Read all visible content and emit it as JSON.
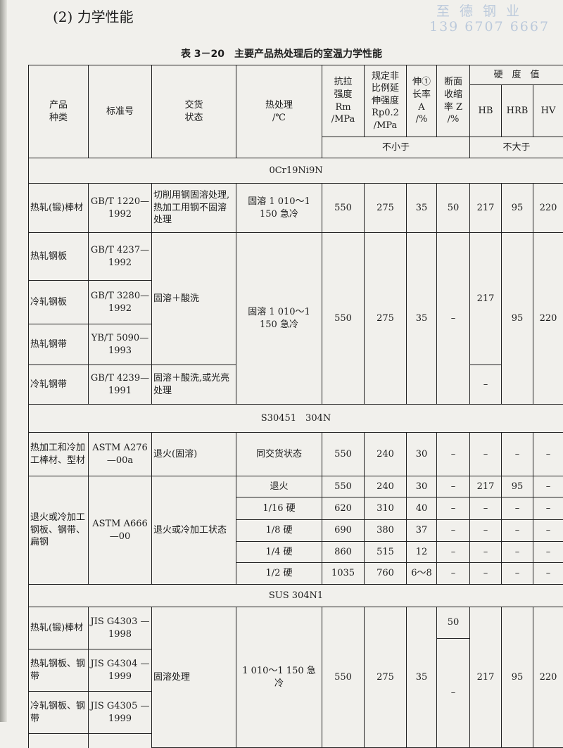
{
  "section_title": "(2) 力学性能",
  "caption": "表 3－20　主要产品热处理后的室温力学性能",
  "header": {
    "product": "产品\n种类",
    "standard": "标准号",
    "delivery": "交货\n状态",
    "heat": "热处理\n/℃",
    "rm": "抗拉\n强度\nRm\n/MPa",
    "rp": "规定非\n比例延\n伸强度\nRp0.2\n/MPa",
    "a": "伸①\n长率\nA\n/%",
    "z": "断面\n收缩\n率 Z\n/%",
    "hardness": "硬　度　值",
    "hb": "HB",
    "hrb": "HRB",
    "hv": "HV",
    "min": "不小于",
    "max": "不大于"
  },
  "groups": [
    {
      "name": "0Cr19Ni9N",
      "r1": {
        "product": "热轧(锻)棒材",
        "standard": "GB/T 1220—1992",
        "delivery": "切削用钢固溶处理,热加工用钢不固溶处理",
        "heat": "固溶 1 010～1 150 急冷",
        "rm": "550",
        "rp": "275",
        "a": "35",
        "z": "50",
        "hb": "217",
        "hrb": "95",
        "hv": "220"
      },
      "products": [
        "热轧钢板",
        "冷轧钢板",
        "热轧钢带",
        "冷轧钢带"
      ],
      "standards": [
        "GB/T 4237—1992",
        "GB/T 3280—1992",
        "YB/T 5090—1993",
        "GB/T 4239—1991"
      ],
      "delivery": [
        "固溶＋酸洗",
        "固溶＋酸洗,或光亮处理"
      ],
      "heat": "固溶 1 010～1 150 急冷",
      "rm": "550",
      "rp": "275",
      "a": "35",
      "z": "–",
      "hb": [
        "217",
        "–"
      ],
      "hrb": "95",
      "hv": "220"
    },
    {
      "name": "S30451　304N",
      "r1": {
        "product": "热加工和冷加工棒材、型材",
        "standard": "ASTM A276—00a",
        "delivery": "退火(固溶)",
        "heat": "同交货状态",
        "rm": "550",
        "rp": "240",
        "a": "30",
        "z": "–",
        "hb": "–",
        "hrb": "–",
        "hv": "–"
      },
      "product": "退火或冷加工钢板、钢带、扁钢",
      "standard": "ASTM A666 —00",
      "delivery": "退火或冷加工状态",
      "rows": [
        {
          "heat": "退火",
          "rm": "550",
          "rp": "240",
          "a": "30",
          "z": "–",
          "hb": "217",
          "hrb": "95",
          "hv": "–"
        },
        {
          "heat": "1/16 硬",
          "rm": "620",
          "rp": "310",
          "a": "40",
          "z": "–",
          "hb": "–",
          "hrb": "–",
          "hv": "–"
        },
        {
          "heat": "1/8 硬",
          "rm": "690",
          "rp": "380",
          "a": "37",
          "z": "–",
          "hb": "–",
          "hrb": "–",
          "hv": "–"
        },
        {
          "heat": "1/4 硬",
          "rm": "860",
          "rp": "515",
          "a": "12",
          "z": "–",
          "hb": "–",
          "hrb": "–",
          "hv": "–"
        },
        {
          "heat": "1/2 硬",
          "rm": "1035",
          "rp": "760",
          "a": "6～8",
          "z": "–",
          "hb": "–",
          "hrb": "–",
          "hv": "–"
        }
      ]
    },
    {
      "name": "SUS 304N1",
      "products": [
        "热轧(锻)棒材",
        "热轧钢板、钢带",
        "冷轧钢板、钢带"
      ],
      "standards": [
        "JIS G4303 —1998",
        "JIS G4304 —1999",
        "JIS G4305 —1999"
      ],
      "delivery": "固溶处理",
      "heat": "1 010～1 150 急冷",
      "rm": "550",
      "rp": "275",
      "a": "35",
      "z": [
        "50",
        "–"
      ],
      "hb": "217",
      "hrb": "95",
      "hv": "220"
    }
  ],
  "watermark": {
    "name": "至德钢业",
    "phone": "139 6707 6667"
  }
}
